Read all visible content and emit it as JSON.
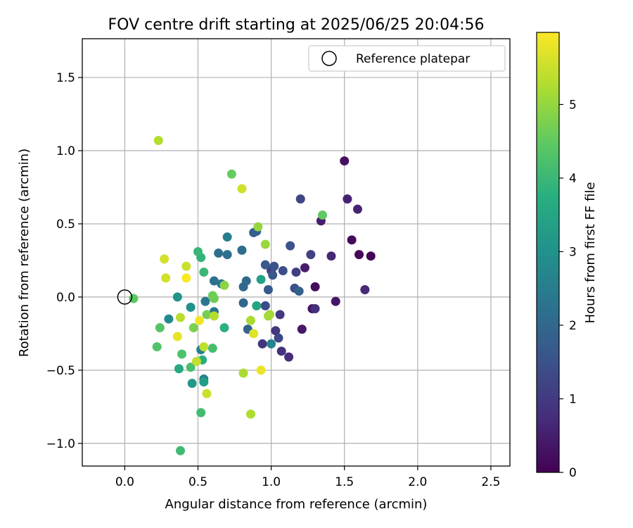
{
  "chart_data": {
    "type": "scatter",
    "title": "FOV centre drift starting at 2025/06/25 20:04:56",
    "xlabel": "Angular distance from reference (arcmin)",
    "ylabel": "Rotation from reference (arcmin)",
    "xlim": [
      -0.29,
      2.63
    ],
    "ylim": [
      -1.155,
      1.765
    ],
    "xticks": [
      0.0,
      0.5,
      1.0,
      1.5,
      2.0,
      2.5
    ],
    "xtick_labels": [
      "0.0",
      "0.5",
      "1.0",
      "1.5",
      "2.0",
      "2.5"
    ],
    "yticks": [
      -1.0,
      -0.5,
      0.0,
      0.5,
      1.0,
      1.5
    ],
    "ytick_labels": [
      "−1.0",
      "−0.5",
      "0.0",
      "0.5",
      "1.0",
      "1.5"
    ],
    "grid": true,
    "legend": {
      "placement": "top-right",
      "entries": [
        {
          "label": "Reference platepar",
          "marker": "open-circle"
        }
      ]
    },
    "reference_point": {
      "x": 0.0,
      "y": 0.0
    },
    "colorbar": {
      "label": "Hours from first FF file",
      "range": [
        0,
        5.98
      ],
      "ticks": [
        0,
        1,
        2,
        3,
        4,
        5
      ],
      "tick_labels": [
        "0",
        "1",
        "2",
        "3",
        "4",
        "5"
      ],
      "colormap": "viridis"
    },
    "series": [
      {
        "color_by": "hours",
        "points": [
          {
            "x": 1.5,
            "y": 0.93,
            "h": 0.25
          },
          {
            "x": 1.68,
            "y": 0.28,
            "h": 0.05
          },
          {
            "x": 1.6,
            "y": 0.29,
            "h": 0.1
          },
          {
            "x": 1.55,
            "y": 0.39,
            "h": 0.15
          },
          {
            "x": 1.44,
            "y": -0.03,
            "h": 0.35
          },
          {
            "x": 1.3,
            "y": 0.07,
            "h": 0.2
          },
          {
            "x": 1.28,
            "y": -0.08,
            "h": 0.3
          },
          {
            "x": 1.21,
            "y": -0.22,
            "h": 0.4
          },
          {
            "x": 1.23,
            "y": 0.2,
            "h": 0.45
          },
          {
            "x": 1.34,
            "y": 0.52,
            "h": 0.5
          },
          {
            "x": 1.52,
            "y": 0.67,
            "h": 0.55
          },
          {
            "x": 1.59,
            "y": 0.6,
            "h": 0.6
          },
          {
            "x": 1.41,
            "y": 0.28,
            "h": 0.65
          },
          {
            "x": 1.64,
            "y": 0.05,
            "h": 0.7
          },
          {
            "x": 1.3,
            "y": -0.08,
            "h": 0.8
          },
          {
            "x": 1.12,
            "y": -0.41,
            "h": 0.75
          },
          {
            "x": 1.07,
            "y": -0.37,
            "h": 0.85
          },
          {
            "x": 0.94,
            "y": -0.32,
            "h": 0.9
          },
          {
            "x": 1.03,
            "y": -0.23,
            "h": 0.95
          },
          {
            "x": 1.06,
            "y": -0.12,
            "h": 1.0
          },
          {
            "x": 1.0,
            "y": 0.18,
            "h": 1.05
          },
          {
            "x": 1.17,
            "y": 0.17,
            "h": 1.1
          },
          {
            "x": 1.27,
            "y": 0.29,
            "h": 1.15
          },
          {
            "x": 1.2,
            "y": 0.67,
            "h": 1.25
          },
          {
            "x": 1.05,
            "y": -0.28,
            "h": 1.3
          },
          {
            "x": 0.96,
            "y": -0.06,
            "h": 1.35
          },
          {
            "x": 1.08,
            "y": 0.18,
            "h": 1.4
          },
          {
            "x": 1.16,
            "y": 0.06,
            "h": 1.45
          },
          {
            "x": 1.13,
            "y": 0.35,
            "h": 1.5
          },
          {
            "x": 1.02,
            "y": 0.21,
            "h": 1.55
          },
          {
            "x": 1.01,
            "y": 0.15,
            "h": 1.6
          },
          {
            "x": 0.98,
            "y": 0.05,
            "h": 1.65
          },
          {
            "x": 0.96,
            "y": 0.22,
            "h": 1.7
          },
          {
            "x": 0.88,
            "y": 0.44,
            "h": 1.75
          },
          {
            "x": 0.9,
            "y": 0.45,
            "h": 1.8
          },
          {
            "x": 1.19,
            "y": 0.04,
            "h": 1.85
          },
          {
            "x": 0.84,
            "y": -0.22,
            "h": 1.9
          },
          {
            "x": 0.81,
            "y": -0.04,
            "h": 1.95
          },
          {
            "x": 0.81,
            "y": 0.07,
            "h": 2.0
          },
          {
            "x": 0.83,
            "y": 0.11,
            "h": 2.05
          },
          {
            "x": 0.8,
            "y": 0.32,
            "h": 2.1
          },
          {
            "x": 0.7,
            "y": 0.29,
            "h": 2.15
          },
          {
            "x": 0.64,
            "y": 0.3,
            "h": 2.2
          },
          {
            "x": 0.61,
            "y": 0.11,
            "h": 2.25
          },
          {
            "x": 0.66,
            "y": 0.09,
            "h": 2.3
          },
          {
            "x": 0.61,
            "y": -0.1,
            "h": 2.35
          },
          {
            "x": 0.55,
            "y": -0.03,
            "h": 2.4
          },
          {
            "x": 0.7,
            "y": 0.41,
            "h": 2.5
          },
          {
            "x": 0.52,
            "y": -0.36,
            "h": 2.55
          },
          {
            "x": 0.54,
            "y": -0.56,
            "h": 2.6
          },
          {
            "x": 1.0,
            "y": -0.32,
            "h": 2.7
          },
          {
            "x": 0.3,
            "y": -0.15,
            "h": 2.8
          },
          {
            "x": 0.45,
            "y": -0.07,
            "h": 3.0
          },
          {
            "x": 0.36,
            "y": 0.0,
            "h": 3.1
          },
          {
            "x": 0.46,
            "y": -0.59,
            "h": 3.2
          },
          {
            "x": 0.54,
            "y": -0.58,
            "h": 3.3
          },
          {
            "x": 0.93,
            "y": 0.12,
            "h": 3.4
          },
          {
            "x": 0.9,
            "y": -0.06,
            "h": 3.5
          },
          {
            "x": 0.37,
            "y": -0.49,
            "h": 3.6
          },
          {
            "x": 0.53,
            "y": -0.43,
            "h": 3.7
          },
          {
            "x": 0.68,
            "y": -0.21,
            "h": 3.8
          },
          {
            "x": 0.52,
            "y": 0.27,
            "h": 3.9
          },
          {
            "x": 0.5,
            "y": 0.31,
            "h": 3.95
          },
          {
            "x": 0.54,
            "y": 0.17,
            "h": 4.0
          },
          {
            "x": 0.38,
            "y": -1.05,
            "h": 4.05
          },
          {
            "x": 0.52,
            "y": -0.79,
            "h": 4.1
          },
          {
            "x": 0.6,
            "y": -0.35,
            "h": 4.15
          },
          {
            "x": 0.45,
            "y": -0.48,
            "h": 4.2
          },
          {
            "x": 0.39,
            "y": -0.39,
            "h": 4.25
          },
          {
            "x": 0.22,
            "y": -0.34,
            "h": 4.3
          },
          {
            "x": 0.24,
            "y": -0.21,
            "h": 4.35
          },
          {
            "x": 0.06,
            "y": -0.01,
            "h": 4.45
          },
          {
            "x": 1.35,
            "y": 0.56,
            "h": 4.5
          },
          {
            "x": 0.73,
            "y": 0.84,
            "h": 4.55
          },
          {
            "x": 0.6,
            "y": 0.01,
            "h": 4.6
          },
          {
            "x": 0.61,
            "y": -0.01,
            "h": 4.65
          },
          {
            "x": 0.56,
            "y": -0.12,
            "h": 4.7
          },
          {
            "x": 0.47,
            "y": -0.21,
            "h": 4.75
          },
          {
            "x": 0.68,
            "y": 0.08,
            "h": 4.9
          },
          {
            "x": 0.91,
            "y": 0.48,
            "h": 5.0
          },
          {
            "x": 0.96,
            "y": 0.36,
            "h": 5.05
          },
          {
            "x": 0.99,
            "y": -0.12,
            "h": 5.1
          },
          {
            "x": 0.98,
            "y": -0.13,
            "h": 5.15
          },
          {
            "x": 0.86,
            "y": -0.16,
            "h": 5.2
          },
          {
            "x": 0.61,
            "y": -0.13,
            "h": 5.3
          },
          {
            "x": 0.38,
            "y": -0.14,
            "h": 5.35
          },
          {
            "x": 0.54,
            "y": -0.34,
            "h": 5.4
          },
          {
            "x": 0.49,
            "y": -0.44,
            "h": 5.45
          },
          {
            "x": 0.56,
            "y": -0.66,
            "h": 5.5
          },
          {
            "x": 0.81,
            "y": -0.52,
            "h": 5.2
          },
          {
            "x": 0.86,
            "y": -0.8,
            "h": 5.25
          },
          {
            "x": 0.23,
            "y": 1.07,
            "h": 5.3
          },
          {
            "x": 0.8,
            "y": 0.74,
            "h": 5.55
          },
          {
            "x": 0.27,
            "y": 0.26,
            "h": 5.6
          },
          {
            "x": 0.28,
            "y": 0.13,
            "h": 5.6
          },
          {
            "x": 0.42,
            "y": 0.21,
            "h": 5.5
          },
          {
            "x": 0.88,
            "y": -0.25,
            "h": 5.7
          },
          {
            "x": 0.36,
            "y": -0.27,
            "h": 5.75
          },
          {
            "x": 0.51,
            "y": -0.16,
            "h": 5.85
          },
          {
            "x": 0.93,
            "y": -0.5,
            "h": 5.8
          },
          {
            "x": 0.42,
            "y": 0.13,
            "h": 5.95
          }
        ]
      }
    ]
  }
}
